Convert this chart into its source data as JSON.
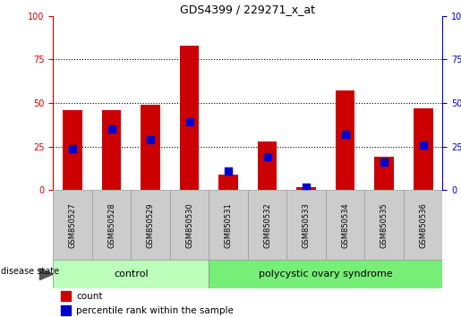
{
  "title": "GDS4399 / 229271_x_at",
  "samples": [
    "GSM850527",
    "GSM850528",
    "GSM850529",
    "GSM850530",
    "GSM850531",
    "GSM850532",
    "GSM850533",
    "GSM850534",
    "GSM850535",
    "GSM850536"
  ],
  "count": [
    46,
    46,
    49,
    83,
    9,
    28,
    2,
    57,
    19,
    47
  ],
  "percentile": [
    24,
    35,
    29,
    39,
    11,
    19,
    2,
    32,
    16,
    26
  ],
  "bar_color": "#cc0000",
  "dot_color": "#0000cc",
  "ylim": [
    0,
    100
  ],
  "yticks": [
    0,
    25,
    50,
    75,
    100
  ],
  "n_control": 4,
  "n_pcos": 6,
  "control_label": "control",
  "pcos_label": "polycystic ovary syndrome",
  "disease_label": "disease state",
  "legend_count_label": "count",
  "legend_pct_label": "percentile rank within the sample",
  "left_axis_color": "#cc0000",
  "right_axis_color": "#0000cc",
  "bar_width": 0.5,
  "dot_size": 30,
  "control_bg": "#bbffbb",
  "pcos_bg": "#77ee77",
  "sample_bg": "#cccccc",
  "grid_style": "dotted"
}
